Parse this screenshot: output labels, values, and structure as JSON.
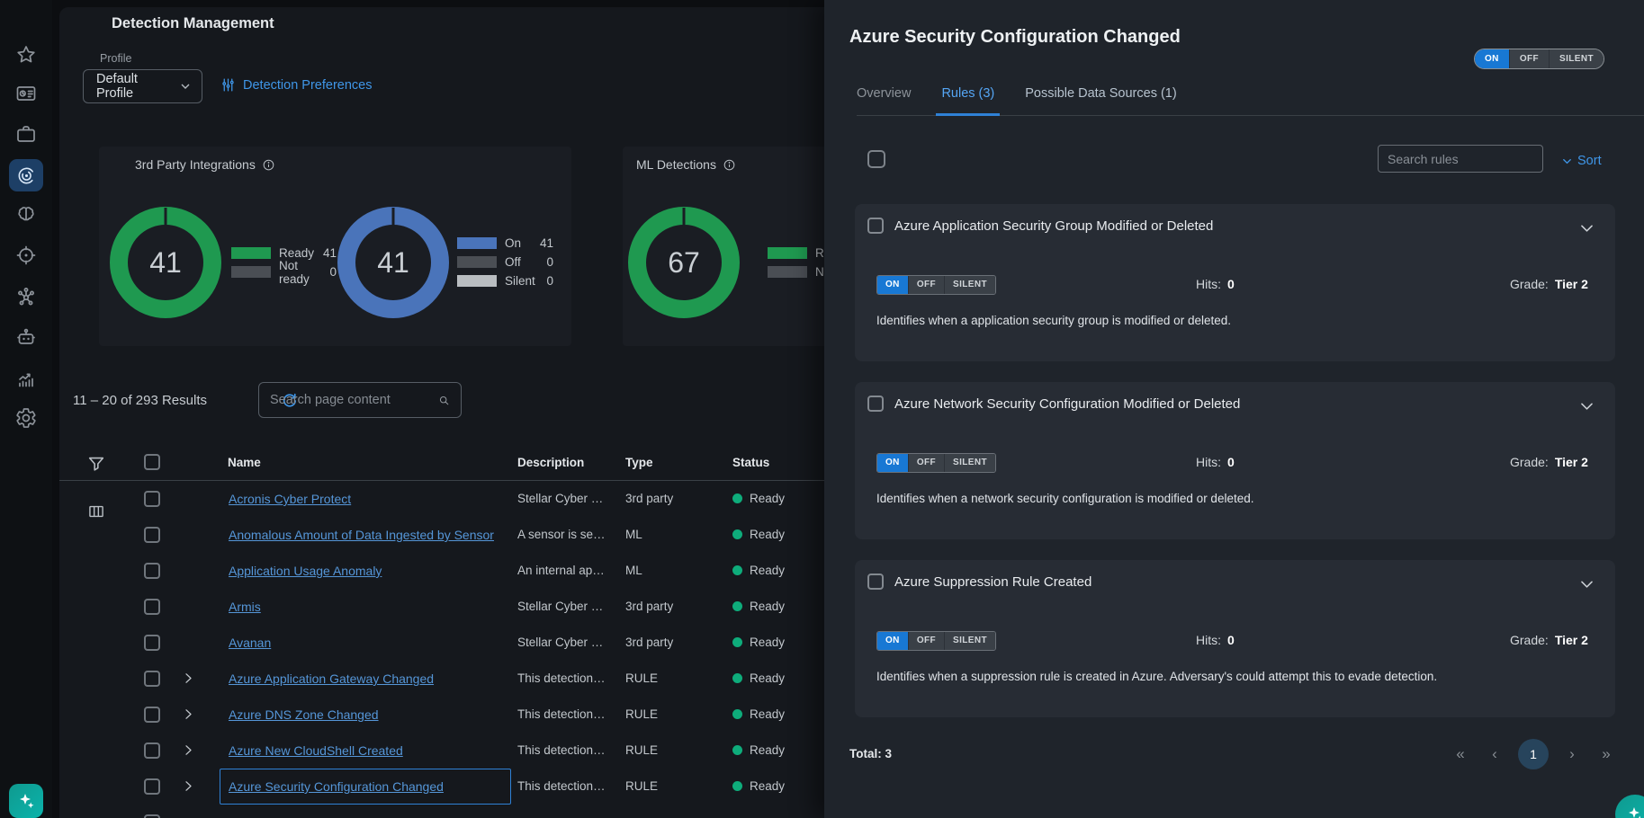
{
  "colors": {
    "accent_blue": "#2f81d6",
    "link_blue": "#5596d8",
    "toggle_on_blue": "#1878d4",
    "donut_green": "#1f9950",
    "donut_blue": "#4a74ba",
    "status_green": "#0eac7b"
  },
  "sidebar": {
    "active": "detections"
  },
  "header": {
    "title": "Detection Management",
    "profile_label": "Profile",
    "profile_value": "Default Profile",
    "detection_preferences": "Detection Preferences"
  },
  "summary_cards": {
    "third_party": {
      "title": "3rd Party Integrations",
      "donuts": [
        {
          "value": "41",
          "legend": [
            {
              "label": "Ready",
              "value": "41",
              "swatch": "#1f9950"
            },
            {
              "label": "Not ready",
              "value": "0",
              "swatch": "#4a4e54"
            }
          ]
        },
        {
          "value": "41",
          "legend": [
            {
              "label": "On",
              "value": "41",
              "swatch": "#4a74ba"
            },
            {
              "label": "Off",
              "value": "0",
              "swatch": "#4a4e54"
            },
            {
              "label": "Silent",
              "value": "0",
              "swatch": "#b9bdc1"
            }
          ]
        }
      ]
    },
    "ml": {
      "title": "ML Detections",
      "donuts": [
        {
          "value": "67",
          "legend": [
            {
              "label": "Ready",
              "value": "",
              "swatch": "#1f9950"
            },
            {
              "label": "Not ready",
              "value": "",
              "swatch": "#4a4e54"
            }
          ]
        }
      ]
    }
  },
  "results_bar": {
    "count": "11 – 20 of 293 Results",
    "search_placeholder": "Search page content"
  },
  "table": {
    "columns": {
      "name": "Name",
      "description": "Description",
      "type": "Type",
      "status": "Status"
    },
    "rows": [
      {
        "name": "Acronis Cyber Protect",
        "description": "Stellar Cyber …",
        "type": "3rd party",
        "status": "Ready",
        "expandable": false,
        "selected": false
      },
      {
        "name": "Anomalous Amount of Data Ingested by Sensor",
        "description": "A sensor is se…",
        "type": "ML",
        "status": "Ready",
        "expandable": false,
        "selected": false
      },
      {
        "name": "Application Usage Anomaly",
        "description": "An internal ap…",
        "type": "ML",
        "status": "Ready",
        "expandable": false,
        "selected": false
      },
      {
        "name": "Armis",
        "description": "Stellar Cyber …",
        "type": "3rd party",
        "status": "Ready",
        "expandable": false,
        "selected": false
      },
      {
        "name": "Avanan",
        "description": "Stellar Cyber …",
        "type": "3rd party",
        "status": "Ready",
        "expandable": false,
        "selected": false
      },
      {
        "name": "Azure Application Gateway Changed",
        "description": "This detection…",
        "type": "RULE",
        "status": "Ready",
        "expandable": true,
        "selected": false
      },
      {
        "name": "Azure DNS Zone Changed",
        "description": "This detection…",
        "type": "RULE",
        "status": "Ready",
        "expandable": true,
        "selected": false
      },
      {
        "name": "Azure New CloudShell Created",
        "description": "This detection…",
        "type": "RULE",
        "status": "Ready",
        "expandable": true,
        "selected": false
      },
      {
        "name": "Azure Security Configuration Changed",
        "description": "This detection…",
        "type": "RULE",
        "status": "Ready",
        "expandable": true,
        "selected": true
      }
    ]
  },
  "panel": {
    "title": "Azure Security Configuration Changed",
    "toggle_options": [
      "ON",
      "OFF",
      "SILENT"
    ],
    "toggle_active": "ON",
    "tabs": [
      {
        "label": "Overview",
        "active": false,
        "style": "muted"
      },
      {
        "label": "Rules (3)",
        "active": true,
        "style": ""
      },
      {
        "label": "Possible Data Sources (1)",
        "active": false,
        "style": "bright"
      }
    ],
    "search_placeholder": "Search rules",
    "sort_label": "Sort",
    "hits_label": "Hits:",
    "grade_label": "Grade:",
    "rules": [
      {
        "title": "Azure Application Security Group Modified or Deleted",
        "toggle_active": "ON",
        "hits": "0",
        "grade": "Tier 2",
        "description": "Identifies when a application security group is modified or deleted."
      },
      {
        "title": "Azure Network Security Configuration Modified or Deleted",
        "toggle_active": "ON",
        "hits": "0",
        "grade": "Tier 2",
        "description": "Identifies when a network security configuration is modified or deleted."
      },
      {
        "title": "Azure Suppression Rule Created",
        "toggle_active": "ON",
        "hits": "0",
        "grade": "Tier 2",
        "description": "Identifies when a suppression rule is created in Azure. Adversary's could attempt this to evade detection."
      }
    ],
    "footer": {
      "total": "Total: 3",
      "page": "1"
    }
  }
}
